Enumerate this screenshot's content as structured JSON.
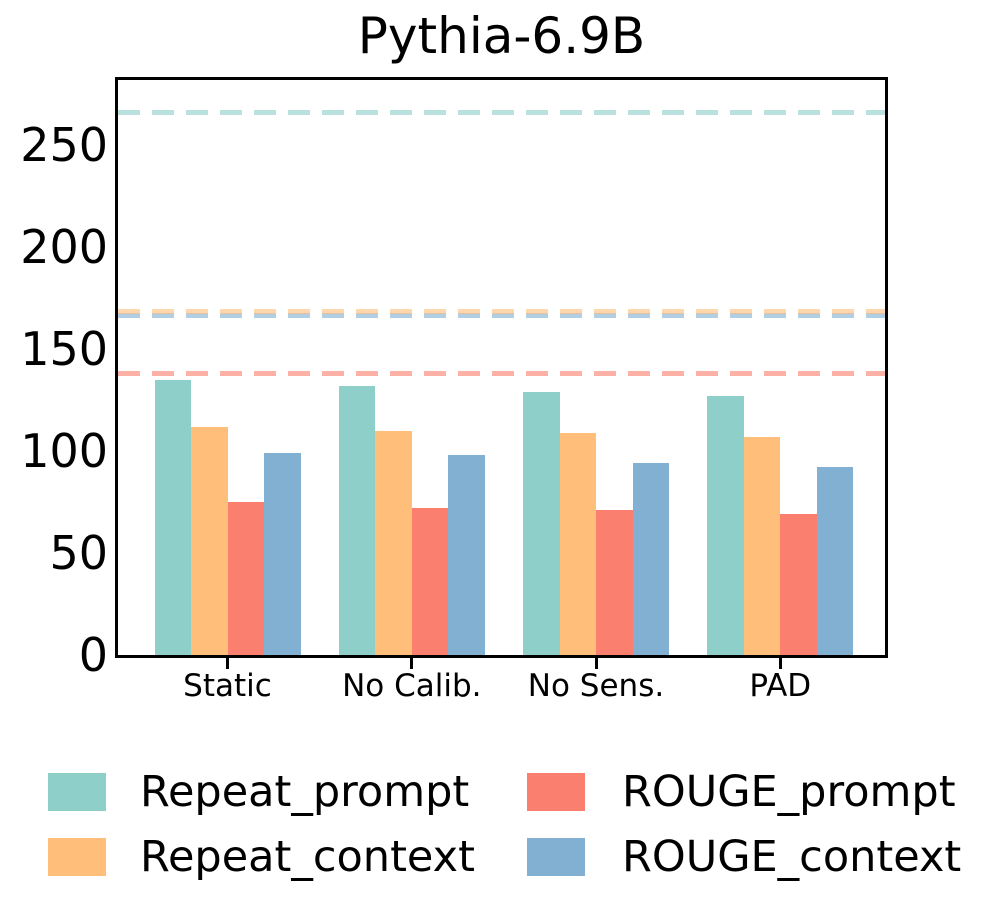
{
  "title": "Pythia-6.9B",
  "colors": {
    "background": "#ffffff",
    "axis": "#000000",
    "repeat_prompt": "#8ECFC9",
    "repeat_context": "#FFBE7A",
    "rouge_prompt": "#FA7F6F",
    "rouge_context": "#82B0D2"
  },
  "chart_data": {
    "type": "bar",
    "title": "Pythia-6.9B",
    "categories": [
      "Static",
      "No Calib.",
      "No Sens.",
      "PAD"
    ],
    "series": [
      {
        "name": "Repeat_prompt",
        "color": "#8ECFC9",
        "values": [
          135,
          132,
          129,
          127
        ]
      },
      {
        "name": "Repeat_context",
        "color": "#FFBE7A",
        "values": [
          112,
          110,
          109,
          107
        ]
      },
      {
        "name": "ROUGE_prompt",
        "color": "#FA7F6F",
        "values": [
          75,
          72,
          71,
          69
        ]
      },
      {
        "name": "ROUGE_context",
        "color": "#82B0D2",
        "values": [
          99,
          98,
          94,
          92
        ]
      }
    ],
    "reference_lines": [
      {
        "series": "Repeat_prompt",
        "value": 266,
        "color": "#8ECFC9",
        "style": "dashed"
      },
      {
        "series": "ROUGE_context",
        "value": 166.5,
        "color": "#82B0D2",
        "style": "dashed"
      },
      {
        "series": "Repeat_context",
        "value": 168.5,
        "color": "#FFBE7A",
        "style": "dashed"
      },
      {
        "series": "ROUGE_prompt",
        "value": 138,
        "color": "#FA7F6F",
        "style": "dashed"
      }
    ],
    "xlabel": "",
    "ylabel": "",
    "ylim": [
      0,
      282
    ],
    "yticks": [
      0,
      50,
      100,
      150,
      200,
      250
    ],
    "grid": false,
    "legend_position": "below",
    "legend": [
      {
        "label": "Repeat_prompt",
        "color": "#8ECFC9"
      },
      {
        "label": "Repeat_context",
        "color": "#FFBE7A"
      },
      {
        "label": "ROUGE_prompt",
        "color": "#FA7F6F"
      },
      {
        "label": "ROUGE_context",
        "color": "#82B0D2"
      }
    ]
  }
}
